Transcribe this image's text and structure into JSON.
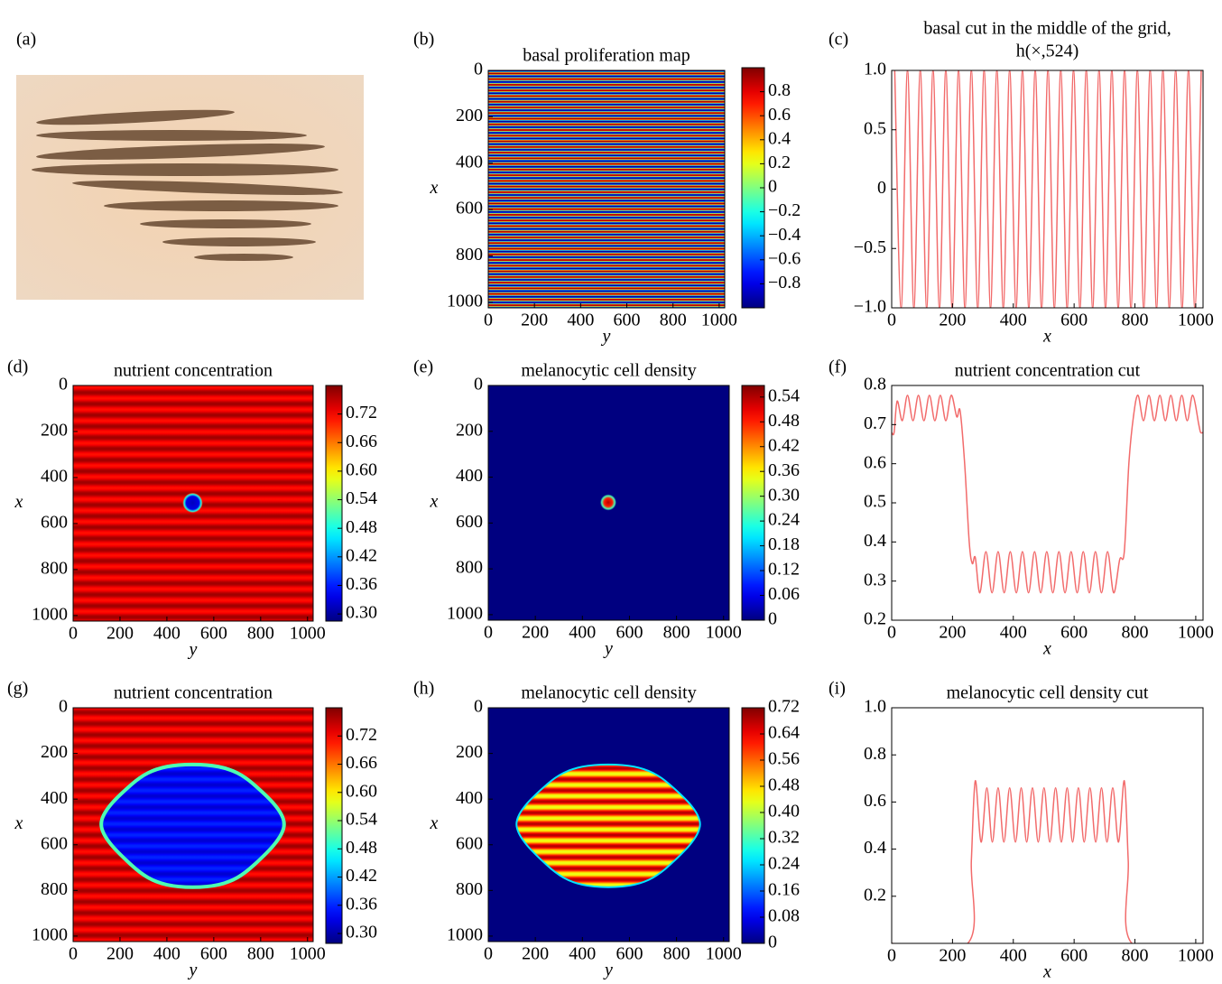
{
  "chart_data": [
    {
      "type": "image",
      "label": "(a)"
    },
    {
      "type": "heatmap",
      "label": "(b)",
      "title": "basal proliferation map",
      "xlabel": "y",
      "ylabel": "x",
      "colormap": "jet",
      "xlim": [
        0,
        1024
      ],
      "ylim": [
        1024,
        0
      ],
      "xticks": [
        0,
        200,
        400,
        600,
        800,
        1000
      ],
      "yticks": [
        0,
        200,
        400,
        600,
        800,
        1000
      ],
      "colorbar": {
        "lim": [
          -1,
          1
        ],
        "ticks": [
          {
            "value": -0.8,
            "label": "−0.8"
          },
          {
            "value": -0.6,
            "label": "−0.6"
          },
          {
            "value": -0.4,
            "label": "−0.4"
          },
          {
            "value": -0.2,
            "label": "−0.2"
          },
          0,
          0.2,
          0.4,
          0.6,
          0.8
        ]
      }
    },
    {
      "type": "line",
      "label": "(c)",
      "title": "basal cut in the middle of the grid,",
      "subtitle": "h(×,524)",
      "xlabel": "x",
      "color": "#f26b6b",
      "xlim": [
        0,
        1024
      ],
      "ylim": [
        -1,
        1
      ],
      "xticks": [
        0,
        200,
        400,
        600,
        800,
        1000
      ],
      "yticks": [
        {
          "value": -1,
          "label": "−1.0"
        },
        {
          "value": -0.5,
          "label": "−0.5"
        },
        0,
        0.5,
        {
          "value": 1,
          "label": "1.0"
        }
      ],
      "x": [
        10,
        31,
        52,
        73,
        94,
        115,
        136,
        157,
        178,
        199,
        220,
        241,
        262,
        283,
        304,
        325,
        346,
        367,
        388,
        409,
        430,
        451,
        472,
        493,
        514,
        535,
        556,
        577,
        598,
        619,
        640,
        661,
        682,
        703,
        724,
        745,
        766,
        787,
        808,
        829,
        850,
        871,
        892,
        913,
        934,
        955,
        976,
        997,
        1018
      ],
      "values": [
        1,
        -1,
        1,
        -1,
        1,
        -1,
        1,
        -1,
        1,
        -1,
        1,
        -1,
        1,
        -1,
        1,
        -1,
        1,
        -1,
        1,
        -1,
        1,
        -1,
        1,
        -1,
        1,
        -1,
        1,
        -1,
        1,
        -1,
        1,
        -1,
        1,
        -1,
        1,
        -1,
        1,
        -1,
        1,
        -1,
        1,
        -1,
        1,
        -1,
        1,
        -1,
        1,
        -1,
        1
      ]
    },
    {
      "type": "heatmap",
      "label": "(d)",
      "title": "nutrient concentration",
      "xlabel": "y",
      "ylabel": "x",
      "colormap": "jet",
      "xlim": [
        0,
        1024
      ],
      "ylim": [
        1024,
        0
      ],
      "xticks": [
        0,
        200,
        400,
        600,
        800,
        1000
      ],
      "yticks": [
        0,
        200,
        400,
        600,
        800,
        1000
      ],
      "colorbar": {
        "lim": [
          0.285,
          0.78
        ],
        "ticks": [
          {
            "value": 0.3,
            "label": "0.30"
          },
          0.36,
          0.42,
          0.48,
          0.54,
          {
            "value": 0.6,
            "label": "0.60"
          },
          0.66,
          0.72
        ]
      }
    },
    {
      "type": "heatmap",
      "label": "(e)",
      "title": "melanocytic cell density",
      "xlabel": "y",
      "ylabel": "x",
      "colormap": "jet",
      "xlim": [
        0,
        1024
      ],
      "ylim": [
        1024,
        0
      ],
      "xticks": [
        0,
        200,
        400,
        600,
        800,
        1000
      ],
      "yticks": [
        0,
        200,
        400,
        600,
        800,
        1000
      ],
      "colorbar": {
        "lim": [
          0,
          0.568
        ],
        "ticks": [
          0,
          0.06,
          0.12,
          0.18,
          0.24,
          {
            "value": 0.3,
            "label": "0.30"
          },
          0.36,
          0.42,
          0.48,
          0.54
        ]
      }
    },
    {
      "type": "line",
      "label": "(f)",
      "title": "nutrient concentration cut",
      "xlabel": "x",
      "color": "#f26b6b",
      "xlim": [
        0,
        1024
      ],
      "ylim": [
        0.2,
        0.8
      ],
      "xticks": [
        0,
        200,
        400,
        600,
        800,
        1000
      ],
      "yticks": [
        0.2,
        0.3,
        0.4,
        0.5,
        0.6,
        0.7,
        0.8
      ],
      "x": [
        0,
        8,
        18,
        35,
        52,
        70,
        88,
        106,
        124,
        142,
        160,
        178,
        196,
        214,
        225,
        240,
        255,
        265,
        275,
        290,
        310,
        330,
        350,
        370,
        390,
        410,
        430,
        450,
        470,
        490,
        510,
        530,
        550,
        570,
        590,
        610,
        630,
        650,
        670,
        690,
        710,
        730,
        750,
        765,
        780,
        795,
        810,
        828,
        846,
        864,
        882,
        900,
        918,
        936,
        954,
        972,
        990,
        1010,
        1016,
        1024
      ],
      "values": [
        0.68,
        0.68,
        0.76,
        0.71,
        0.775,
        0.71,
        0.775,
        0.71,
        0.775,
        0.71,
        0.775,
        0.71,
        0.775,
        0.72,
        0.735,
        0.6,
        0.4,
        0.345,
        0.36,
        0.27,
        0.375,
        0.27,
        0.375,
        0.27,
        0.375,
        0.27,
        0.375,
        0.27,
        0.375,
        0.27,
        0.375,
        0.27,
        0.375,
        0.27,
        0.375,
        0.27,
        0.375,
        0.27,
        0.375,
        0.27,
        0.375,
        0.27,
        0.355,
        0.375,
        0.6,
        0.72,
        0.775,
        0.71,
        0.775,
        0.71,
        0.775,
        0.71,
        0.775,
        0.71,
        0.775,
        0.71,
        0.775,
        0.7,
        0.68,
        0.68
      ]
    },
    {
      "type": "heatmap",
      "label": "(g)",
      "title": "nutrient concentration",
      "xlabel": "y",
      "ylabel": "x",
      "colormap": "jet",
      "xlim": [
        0,
        1024
      ],
      "ylim": [
        1024,
        0
      ],
      "xticks": [
        0,
        200,
        400,
        600,
        800,
        1000
      ],
      "yticks": [
        0,
        200,
        400,
        600,
        800,
        1000
      ],
      "colorbar": {
        "lim": [
          0.279,
          0.78
        ],
        "ticks": [
          {
            "value": 0.3,
            "label": "0.30"
          },
          0.36,
          0.42,
          0.48,
          0.54,
          {
            "value": 0.6,
            "label": "0.60"
          },
          0.66,
          0.72
        ]
      }
    },
    {
      "type": "heatmap",
      "label": "(h)",
      "title": "melanocytic cell density",
      "xlabel": "y",
      "ylabel": "x",
      "colormap": "jet",
      "xlim": [
        0,
        1024
      ],
      "ylim": [
        1024,
        0
      ],
      "xticks": [
        0,
        200,
        400,
        600,
        800,
        1000
      ],
      "yticks": [
        0,
        200,
        400,
        600,
        800,
        1000
      ],
      "colorbar": {
        "lim": [
          0,
          0.72
        ],
        "ticks": [
          0,
          0.08,
          0.16,
          0.24,
          0.32,
          {
            "value": 0.4,
            "label": "0.40"
          },
          0.48,
          0.56,
          0.64,
          0.72
        ]
      }
    },
    {
      "type": "line",
      "label": "(i)",
      "title": "melanocytic cell density cut",
      "xlabel": "x",
      "color": "#f26b6b",
      "xlim": [
        0,
        1024
      ],
      "ylim": [
        0,
        1
      ],
      "xticks": [
        0,
        200,
        400,
        600,
        800,
        1000
      ],
      "yticks": [
        0.2,
        0.4,
        0.6,
        0.8,
        {
          "value": 1,
          "label": "1.0"
        }
      ],
      "x": [
        0,
        250,
        262,
        275,
        294,
        313,
        331,
        350,
        369,
        388,
        407,
        426,
        444,
        463,
        482,
        501,
        520,
        539,
        558,
        577,
        595,
        614,
        633,
        652,
        671,
        690,
        708,
        727,
        746,
        765,
        778,
        790,
        1024
      ],
      "values": [
        0,
        0,
        0.35,
        0.69,
        0.43,
        0.66,
        0.43,
        0.66,
        0.43,
        0.66,
        0.43,
        0.66,
        0.43,
        0.66,
        0.43,
        0.66,
        0.43,
        0.66,
        0.43,
        0.66,
        0.43,
        0.66,
        0.43,
        0.66,
        0.43,
        0.66,
        0.43,
        0.66,
        0.43,
        0.69,
        0.35,
        0,
        0
      ]
    }
  ]
}
